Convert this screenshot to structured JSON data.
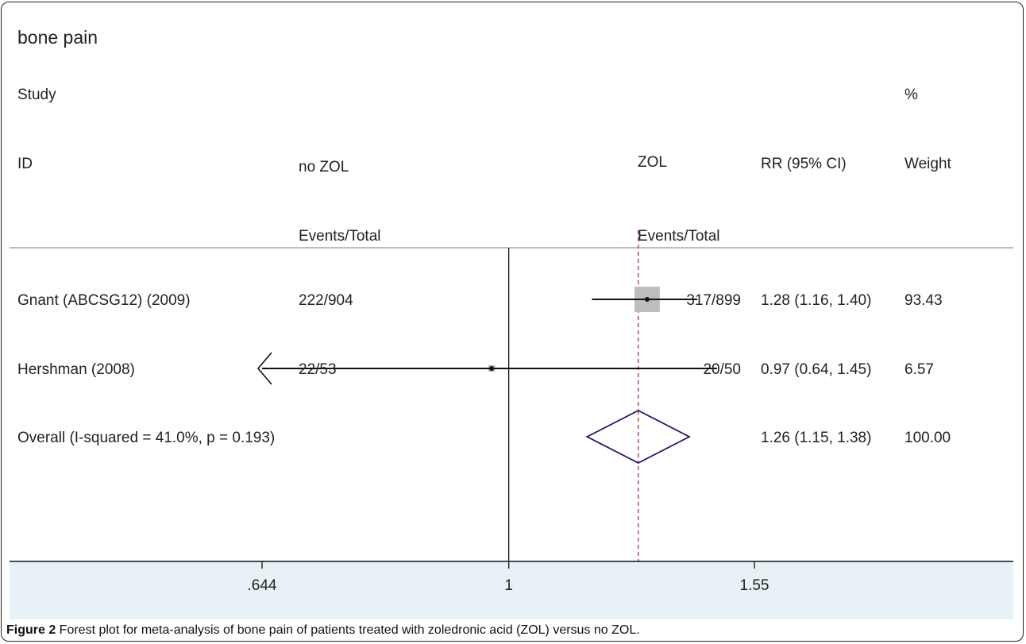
{
  "chart_data": {
    "type": "forest",
    "title": "bone pain",
    "columns": {
      "study_header": [
        "Study",
        "ID"
      ],
      "control_header": [
        "no ZOL",
        "Events/Total"
      ],
      "treatment_header": [
        "ZOL",
        "Events/Total"
      ],
      "effect_header": "RR (95% CI)",
      "weight_header": [
        "%",
        "Weight"
      ]
    },
    "studies": [
      {
        "id": "Gnant (ABCSG12) (2009)",
        "control": "222/904",
        "treatment": "317/899",
        "rr": 1.28,
        "ci": [
          1.16,
          1.4
        ],
        "rr_text": "1.28 (1.16, 1.40)",
        "weight": "93.43"
      },
      {
        "id": "Hershman (2008)",
        "control": "22/53",
        "treatment": "20/50",
        "rr": 0.97,
        "ci": [
          0.64,
          1.45
        ],
        "rr_text": "0.97 (0.64, 1.45)",
        "weight": "6.57"
      }
    ],
    "overall": {
      "label": "Overall  (I-squared = 41.0%, p = 0.193)",
      "rr": 1.26,
      "ci": [
        1.15,
        1.38
      ],
      "rr_text": "1.26 (1.15, 1.38)",
      "weight": "100.00"
    },
    "x_axis": {
      "scale": "log",
      "ticks": [
        0.644,
        1,
        1.55
      ],
      "tick_labels": [
        ".644",
        "1",
        "1.55"
      ],
      "xlim": [
        0.644,
        1.55
      ]
    },
    "null_line": 1,
    "colors": {
      "box": "#bdbdbd",
      "diamond": "#1b1b6b",
      "dashed": "#a02040",
      "axis_band": "#e8f1f5"
    }
  },
  "caption": {
    "label": "Figure 2",
    "text": " Forest plot for meta-analysis of bone pain of patients treated with zoledronic acid (ZOL) versus no ZOL."
  }
}
